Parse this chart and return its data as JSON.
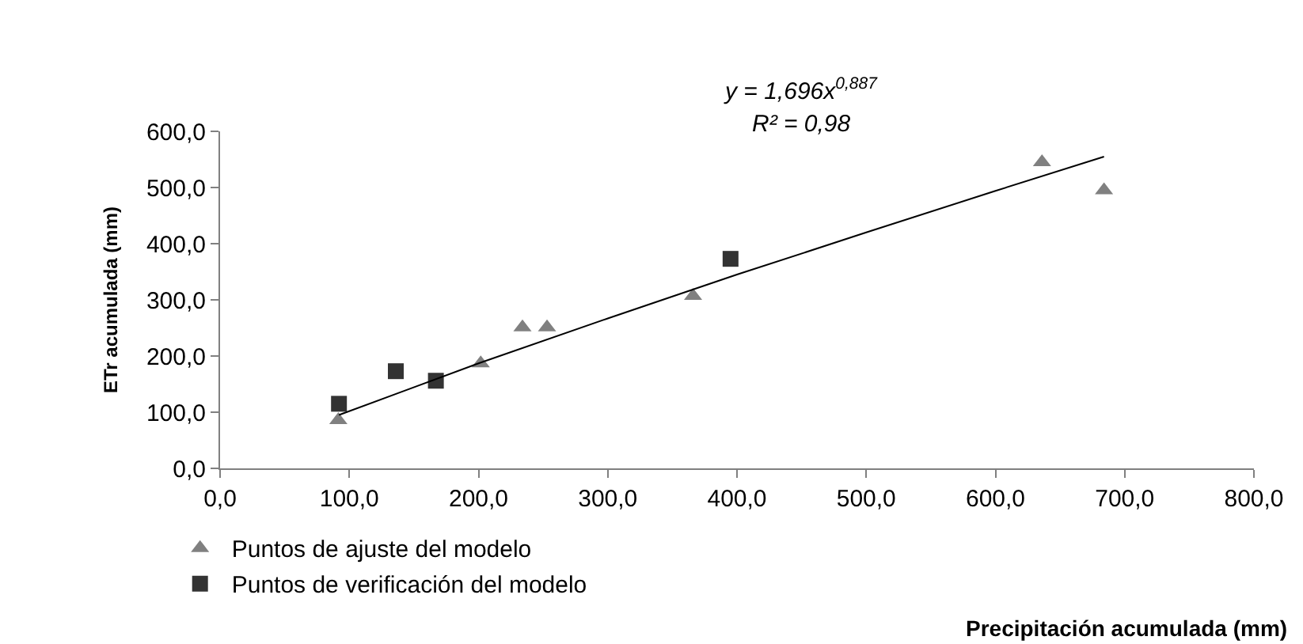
{
  "chart_data": {
    "type": "scatter",
    "xlabel": "Precipitación acumulada (mm)",
    "ylabel": "ETr acumulada (mm)",
    "series": [
      {
        "name": "Puntos de ajuste del modelo",
        "color": "#808080",
        "marker": "triangle",
        "x": [
          91.5,
          201.7,
          234,
          253,
          366,
          636,
          684
        ],
        "values": [
          86,
          187,
          251,
          251,
          307,
          545,
          495
        ]
      },
      {
        "name": "Puntos de verificación del modelo",
        "color": "#333333",
        "marker": "square",
        "x": [
          92,
          136,
          167,
          395
        ],
        "values": [
          115,
          173,
          156,
          373
        ]
      },
      {
        "type": "line",
        "color": "#000000",
        "marker": "none",
        "x": [
          92,
          200,
          300,
          400,
          500,
          600,
          684
        ],
        "values": [
          95,
          187,
          267,
          345,
          420,
          494,
          555
        ]
      }
    ],
    "annotations": [
      "y = 1,696x$^{0,887}$",
      "R² = 0,98"
    ],
    "xlim": [
      0,
      800
    ],
    "ylim": [
      0,
      600
    ],
    "xticks": [
      {
        "value": 0,
        "label": "0,0"
      },
      {
        "value": 100,
        "label": "100,0"
      },
      {
        "value": 200,
        "label": "200,0"
      },
      {
        "value": 300,
        "label": "300,0"
      },
      {
        "value": 400,
        "label": "400,0"
      },
      {
        "value": 500,
        "label": "500,0"
      },
      {
        "value": 600,
        "label": "600,0"
      },
      {
        "value": 700,
        "label": "700,0"
      },
      {
        "value": 800,
        "label": "800,0"
      }
    ],
    "yticks": [
      {
        "value": 0,
        "label": "0,0"
      },
      {
        "value": 100,
        "label": "100,0"
      },
      {
        "value": 200,
        "label": "200,0"
      },
      {
        "value": 300,
        "label": "300,0"
      },
      {
        "value": 400,
        "label": "400,0"
      },
      {
        "value": 500,
        "label": "500,0"
      },
      {
        "value": 600,
        "label": "600,0"
      }
    ],
    "legend": "bottom left"
  }
}
